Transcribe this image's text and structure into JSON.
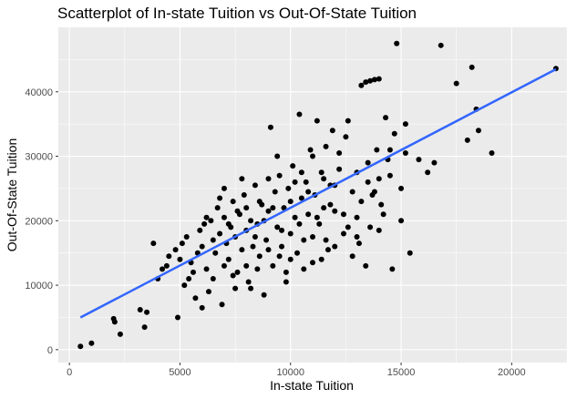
{
  "chart_data": {
    "type": "scatter",
    "title": "Scatterplot of In-state Tuition vs Out-Of-State Tuition",
    "xlabel": "In-state Tuition",
    "ylabel": "Out-Of-State Tuition",
    "xlim": [
      -500,
      22500
    ],
    "ylim": [
      -2000,
      50000
    ],
    "x_ticks": [
      0,
      5000,
      10000,
      15000,
      20000
    ],
    "x_tick_labels": [
      "0",
      "5000",
      "10000",
      "15000",
      "20000"
    ],
    "y_ticks": [
      0,
      10000,
      20000,
      30000,
      40000
    ],
    "y_tick_labels": [
      "0",
      "10000",
      "20000",
      "30000",
      "40000"
    ],
    "grid": true,
    "legend": "none",
    "colors": {
      "panel": "#ebebeb",
      "grid_major": "#ffffff",
      "points": "#000000",
      "trend_line": "#3366ff"
    },
    "trend_line": {
      "x": [
        500,
        22000
      ],
      "y": [
        5000,
        43500
      ]
    },
    "points": [
      [
        500,
        500
      ],
      [
        1000,
        1000
      ],
      [
        2000,
        4800
      ],
      [
        2050,
        4300
      ],
      [
        2300,
        2400
      ],
      [
        3200,
        6200
      ],
      [
        3400,
        3500
      ],
      [
        3500,
        5800
      ],
      [
        3800,
        16500
      ],
      [
        4000,
        11000
      ],
      [
        4200,
        12500
      ],
      [
        4400,
        13000
      ],
      [
        4500,
        14500
      ],
      [
        4800,
        15500
      ],
      [
        4900,
        5000
      ],
      [
        5000,
        14000
      ],
      [
        5100,
        16500
      ],
      [
        5200,
        10000
      ],
      [
        5300,
        17500
      ],
      [
        5500,
        13500
      ],
      [
        5600,
        12000
      ],
      [
        5700,
        8000
      ],
      [
        5800,
        15000
      ],
      [
        5900,
        18500
      ],
      [
        6000,
        16000
      ],
      [
        6100,
        19500
      ],
      [
        6200,
        12500
      ],
      [
        6300,
        9000
      ],
      [
        6400,
        20000
      ],
      [
        6500,
        17000
      ],
      [
        6600,
        15000
      ],
      [
        6700,
        22000
      ],
      [
        6800,
        18000
      ],
      [
        6900,
        7000
      ],
      [
        7000,
        20500
      ],
      [
        7100,
        16500
      ],
      [
        7200,
        14000
      ],
      [
        7300,
        19000
      ],
      [
        7400,
        23000
      ],
      [
        7500,
        17500
      ],
      [
        7600,
        12000
      ],
      [
        7700,
        21000
      ],
      [
        7800,
        15500
      ],
      [
        7900,
        24000
      ],
      [
        8000,
        18500
      ],
      [
        8100,
        10500
      ],
      [
        8200,
        20000
      ],
      [
        8300,
        16000
      ],
      [
        8400,
        25500
      ],
      [
        8500,
        19500
      ],
      [
        8600,
        14500
      ],
      [
        8700,
        22500
      ],
      [
        8800,
        8500
      ],
      [
        8900,
        17000
      ],
      [
        9000,
        21500
      ],
      [
        9100,
        34500
      ],
      [
        9200,
        13000
      ],
      [
        9300,
        24500
      ],
      [
        9400,
        19000
      ],
      [
        9500,
        27000
      ],
      [
        9600,
        16000
      ],
      [
        9700,
        22000
      ],
      [
        9800,
        10500
      ],
      [
        9900,
        25000
      ],
      [
        10000,
        18000
      ],
      [
        10100,
        28500
      ],
      [
        10200,
        20500
      ],
      [
        10300,
        15000
      ],
      [
        10400,
        36500
      ],
      [
        10500,
        23500
      ],
      [
        10600,
        12500
      ],
      [
        10700,
        26000
      ],
      [
        10800,
        21000
      ],
      [
        10900,
        31000
      ],
      [
        11000,
        17500
      ],
      [
        11100,
        24000
      ],
      [
        11200,
        35500
      ],
      [
        11300,
        19500
      ],
      [
        11400,
        27500
      ],
      [
        11500,
        22000
      ],
      [
        11600,
        31500
      ],
      [
        11700,
        15500
      ],
      [
        11800,
        25500
      ],
      [
        11900,
        34000
      ],
      [
        12000,
        21500
      ],
      [
        12200,
        28000
      ],
      [
        12400,
        18000
      ],
      [
        12600,
        35500
      ],
      [
        12800,
        24500
      ],
      [
        13000,
        20500
      ],
      [
        13100,
        16500
      ],
      [
        13200,
        41000
      ],
      [
        13400,
        41500
      ],
      [
        13500,
        29000
      ],
      [
        13600,
        41700
      ],
      [
        13700,
        24000
      ],
      [
        13800,
        41900
      ],
      [
        13900,
        31000
      ],
      [
        14000,
        42000
      ],
      [
        14100,
        22500
      ],
      [
        14300,
        36000
      ],
      [
        14500,
        27000
      ],
      [
        14700,
        33500
      ],
      [
        14800,
        47500
      ],
      [
        15000,
        25000
      ],
      [
        15200,
        30500
      ],
      [
        15400,
        15000
      ],
      [
        15800,
        29500
      ],
      [
        16200,
        27500
      ],
      [
        16500,
        29000
      ],
      [
        16800,
        47200
      ],
      [
        17500,
        41300
      ],
      [
        18000,
        32500
      ],
      [
        18200,
        43800
      ],
      [
        18400,
        37300
      ],
      [
        18500,
        34000
      ],
      [
        19100,
        30500
      ],
      [
        22000,
        43600
      ],
      [
        5400,
        11000
      ],
      [
        6200,
        20500
      ],
      [
        6800,
        23500
      ],
      [
        7200,
        19500
      ],
      [
        7600,
        21500
      ],
      [
        8000,
        13000
      ],
      [
        8400,
        17500
      ],
      [
        8800,
        20000
      ],
      [
        9200,
        22000
      ],
      [
        9600,
        18500
      ],
      [
        10000,
        14000
      ],
      [
        10400,
        19500
      ],
      [
        10800,
        24500
      ],
      [
        11200,
        20500
      ],
      [
        11600,
        17000
      ],
      [
        12000,
        25500
      ],
      [
        12400,
        21000
      ],
      [
        12800,
        14500
      ],
      [
        13200,
        23000
      ],
      [
        13600,
        19000
      ],
      [
        14000,
        26500
      ],
      [
        14400,
        29500
      ],
      [
        7000,
        25000
      ],
      [
        7400,
        11500
      ],
      [
        7800,
        26500
      ],
      [
        8200,
        9500
      ],
      [
        8600,
        23000
      ],
      [
        9000,
        15500
      ],
      [
        9400,
        30000
      ],
      [
        9800,
        12000
      ],
      [
        10200,
        26000
      ],
      [
        10600,
        17000
      ],
      [
        11000,
        30000
      ],
      [
        11400,
        14000
      ],
      [
        11800,
        22500
      ],
      [
        12200,
        30500
      ],
      [
        12600,
        19000
      ],
      [
        13000,
        27500
      ],
      [
        13400,
        13000
      ],
      [
        13800,
        24500
      ],
      [
        14200,
        21000
      ],
      [
        14600,
        12500
      ],
      [
        6000,
        6500
      ],
      [
        6500,
        11000
      ],
      [
        7000,
        13000
      ],
      [
        7500,
        9500
      ],
      [
        8000,
        22000
      ],
      [
        8500,
        12500
      ],
      [
        9000,
        26500
      ],
      [
        9500,
        14500
      ],
      [
        10000,
        23000
      ],
      [
        10500,
        27500
      ],
      [
        11000,
        13500
      ],
      [
        11500,
        26500
      ],
      [
        12000,
        16000
      ],
      [
        12500,
        33000
      ],
      [
        13000,
        17500
      ],
      [
        13500,
        26000
      ],
      [
        14000,
        18500
      ],
      [
        14500,
        31000
      ],
      [
        15000,
        20000
      ],
      [
        15200,
        35000
      ]
    ]
  }
}
